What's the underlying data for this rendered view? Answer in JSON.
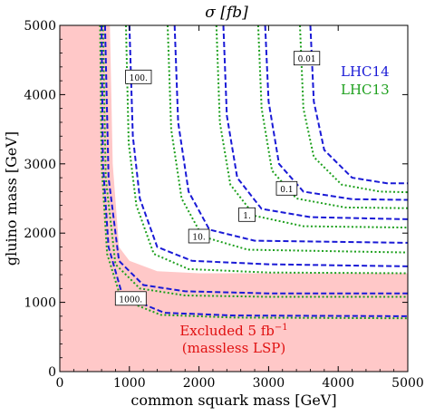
{
  "chart_data": {
    "type": "line",
    "title": "σ  [fb]",
    "xlabel": "common squark mass  [GeV]",
    "ylabel": "gluino mass  [GeV]",
    "xlim": [
      0,
      5000
    ],
    "ylim": [
      0,
      5000
    ],
    "x_ticks": [
      "0",
      "1000",
      "2000",
      "3000",
      "4000",
      "5000"
    ],
    "y_ticks": [
      "0",
      "1000",
      "2000",
      "3000",
      "4000",
      "5000"
    ],
    "grid": false,
    "legend_position": "top-right",
    "legend": [
      {
        "label": "LHC14",
        "color": "#1a1ad6",
        "style": "dashed"
      },
      {
        "label": "LHC13",
        "color": "#1ea01e",
        "style": "dotted"
      }
    ],
    "excluded_region": {
      "label_line1": "Excluded 5 fb",
      "label_sup": "−1",
      "label_line2": "(massless LSP)",
      "color": "#ffc8c8",
      "text_color": "#e01010"
    },
    "contours": [
      {
        "label": "1000.",
        "label_pos": [
          1020,
          1050
        ],
        "LHC14": [
          [
            650,
            5000
          ],
          [
            700,
            2800
          ],
          [
            850,
            1600
          ],
          [
            1200,
            1250
          ],
          [
            1800,
            1160
          ],
          [
            3000,
            1130
          ],
          [
            5000,
            1130
          ]
        ],
        "LHC13": [
          [
            620,
            5000
          ],
          [
            660,
            2800
          ],
          [
            800,
            1550
          ],
          [
            1150,
            1200
          ],
          [
            1800,
            1100
          ],
          [
            3000,
            1080
          ],
          [
            5000,
            1080
          ]
        ]
      },
      {
        "label": "",
        "label_pos": null,
        "LHC14": [
          [
            600,
            5000
          ],
          [
            620,
            3000
          ],
          [
            700,
            1800
          ],
          [
            900,
            1100
          ],
          [
            1500,
            850
          ],
          [
            2500,
            810
          ],
          [
            5000,
            800
          ]
        ],
        "LHC13": [
          [
            580,
            5000
          ],
          [
            600,
            3000
          ],
          [
            680,
            1700
          ],
          [
            880,
            1050
          ],
          [
            1450,
            820
          ],
          [
            2500,
            780
          ],
          [
            5000,
            770
          ]
        ]
      },
      {
        "label": "100.",
        "label_pos": [
          1130,
          4250
        ],
        "LHC14": [
          [
            1000,
            5000
          ],
          [
            1050,
            3400
          ],
          [
            1150,
            2500
          ],
          [
            1400,
            1800
          ],
          [
            1900,
            1600
          ],
          [
            3000,
            1550
          ],
          [
            5000,
            1520
          ]
        ],
        "LHC13": [
          [
            950,
            5000
          ],
          [
            990,
            3300
          ],
          [
            1100,
            2400
          ],
          [
            1350,
            1700
          ],
          [
            1850,
            1480
          ],
          [
            3000,
            1430
          ],
          [
            5000,
            1420
          ]
        ]
      },
      {
        "label": "10.",
        "label_pos": [
          2000,
          1950
        ],
        "LHC14": [
          [
            1650,
            5000
          ],
          [
            1700,
            3600
          ],
          [
            1850,
            2600
          ],
          [
            2150,
            2050
          ],
          [
            2800,
            1890
          ],
          [
            5000,
            1860
          ]
        ],
        "LHC13": [
          [
            1550,
            5000
          ],
          [
            1600,
            3500
          ],
          [
            1750,
            2500
          ],
          [
            2050,
            1950
          ],
          [
            2700,
            1760
          ],
          [
            5000,
            1720
          ]
        ]
      },
      {
        "label": "1.",
        "label_pos": [
          2690,
          2260
        ],
        "LHC14": [
          [
            2350,
            5000
          ],
          [
            2400,
            3700
          ],
          [
            2550,
            2800
          ],
          [
            2900,
            2350
          ],
          [
            3600,
            2230
          ],
          [
            5000,
            2200
          ]
        ],
        "LHC13": [
          [
            2250,
            5000
          ],
          [
            2300,
            3600
          ],
          [
            2450,
            2700
          ],
          [
            2800,
            2250
          ],
          [
            3500,
            2100
          ],
          [
            5000,
            2080
          ]
        ]
      },
      {
        "label": "0.1",
        "label_pos": [
          3260,
          2640
        ],
        "LHC14": [
          [
            2950,
            5000
          ],
          [
            3000,
            3900
          ],
          [
            3150,
            3000
          ],
          [
            3500,
            2600
          ],
          [
            4200,
            2490
          ],
          [
            5000,
            2480
          ]
        ],
        "LHC13": [
          [
            2850,
            5000
          ],
          [
            2900,
            3800
          ],
          [
            3050,
            2900
          ],
          [
            3400,
            2500
          ],
          [
            4100,
            2370
          ],
          [
            5000,
            2360
          ]
        ]
      },
      {
        "label": "0.01",
        "label_pos": [
          3550,
          4520
        ],
        "LHC14": [
          [
            3600,
            5000
          ],
          [
            3650,
            3900
          ],
          [
            3800,
            3200
          ],
          [
            4200,
            2800
          ],
          [
            4700,
            2720
          ],
          [
            5000,
            2720
          ]
        ],
        "LHC13": [
          [
            3450,
            5000
          ],
          [
            3500,
            3800
          ],
          [
            3650,
            3100
          ],
          [
            4050,
            2700
          ],
          [
            4600,
            2600
          ],
          [
            5000,
            2590
          ]
        ]
      }
    ]
  }
}
